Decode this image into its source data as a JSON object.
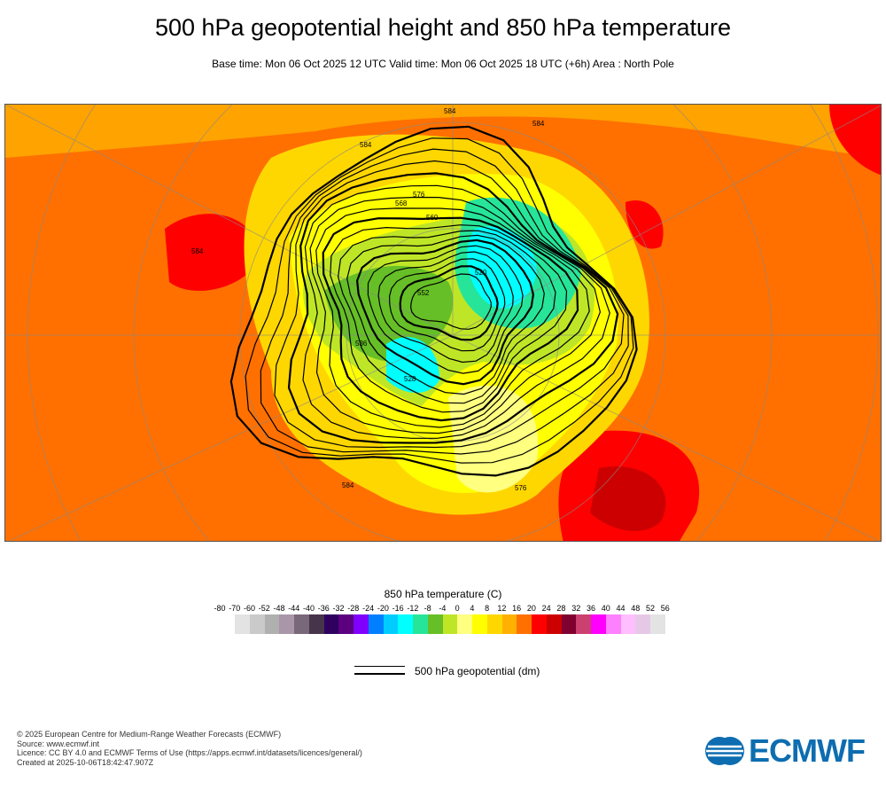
{
  "header": {
    "title": "500 hPa geopotential height and 850 hPa temperature",
    "subtitle": "Base time: Mon 06 Oct 2025 12 UTC Valid time: Mon 06 Oct 2025 18 UTC (+6h) Area : North Pole"
  },
  "map": {
    "area": "North Pole",
    "contour_labels": [
      "584",
      "584",
      "584",
      "576",
      "568",
      "560",
      "552",
      "536",
      "528",
      "520",
      "584",
      "584",
      "576"
    ]
  },
  "colorbar": {
    "title": "850 hPa temperature (C)",
    "ticks": [
      "-80",
      "-70",
      "-60",
      "-52",
      "-48",
      "-44",
      "-40",
      "-36",
      "-32",
      "-28",
      "-24",
      "-20",
      "-16",
      "-12",
      "-8",
      "-4",
      "0",
      "4",
      "8",
      "12",
      "16",
      "20",
      "24",
      "28",
      "32",
      "36",
      "40",
      "44",
      "48",
      "52",
      "56"
    ],
    "colors": [
      "#e3e3e3",
      "#cacaca",
      "#b0b0b0",
      "#a996a9",
      "#796879",
      "#46344a",
      "#2e0060",
      "#5c0080",
      "#8000ff",
      "#0080ff",
      "#00ccff",
      "#00ffff",
      "#26e599",
      "#66bf26",
      "#bfe626",
      "#ffff80",
      "#ffff00",
      "#ffd700",
      "#ffb000",
      "#ff7000",
      "#ff0000",
      "#cc0000",
      "#800030",
      "#cc4070",
      "#ff00ff",
      "#ff80ff",
      "#ffbfff",
      "#e6c8e6",
      "#e3e3e3"
    ]
  },
  "geo_legend": {
    "label": "500 hPa geopotential (dm)"
  },
  "footer": {
    "lines": [
      "© 2025 European Centre for Medium-Range Weather Forecasts (ECMWF)",
      "Source: www.ecmwf.int",
      "Licence: CC BY 4.0 and ECMWF Terms of Use (https://apps.ecmwf.int/datasets/licences/general/)",
      "Created at 2025-10-06T18:42:47.907Z"
    ]
  },
  "logo": {
    "text": "ECMWF"
  }
}
